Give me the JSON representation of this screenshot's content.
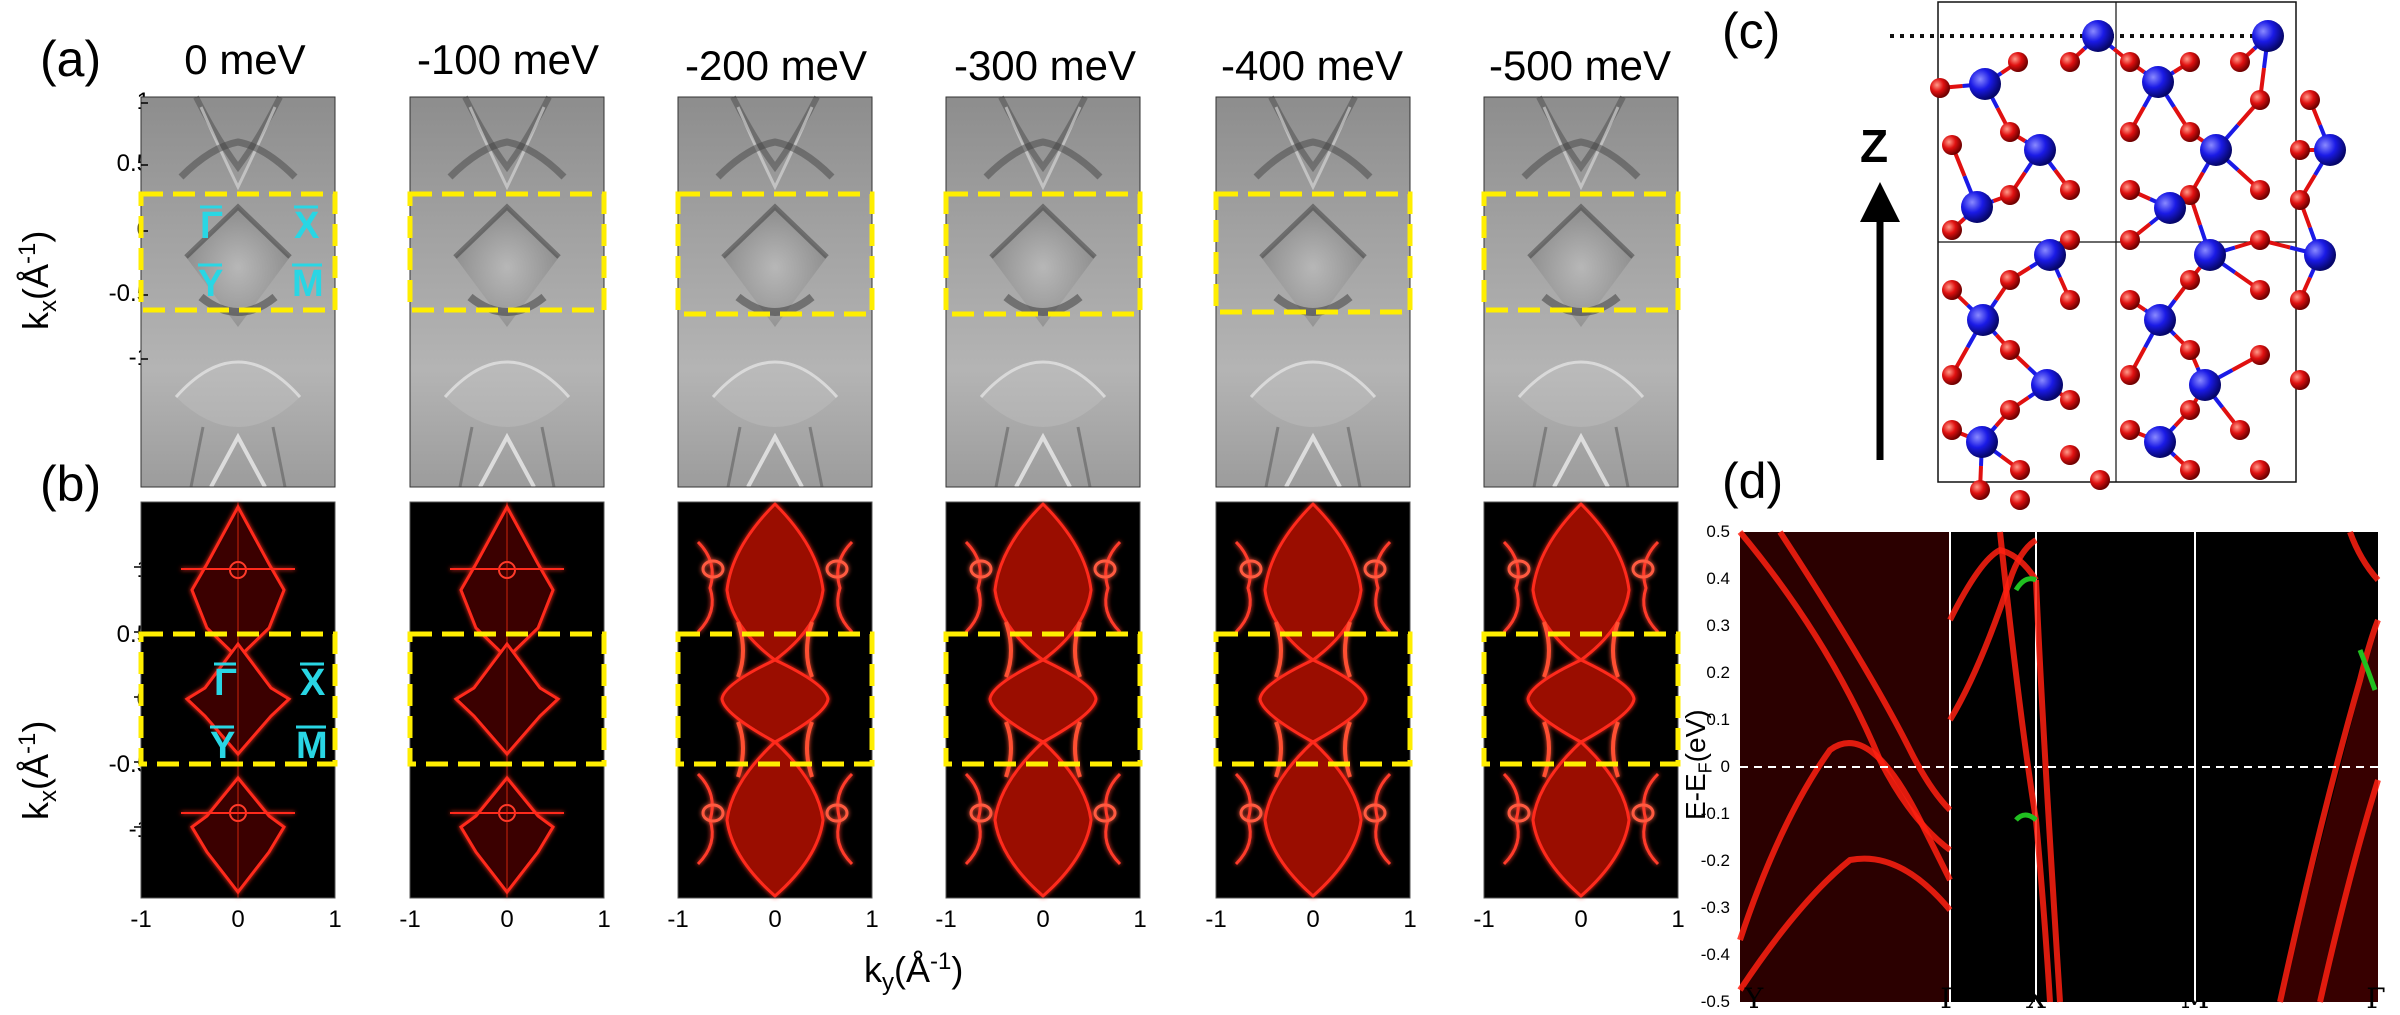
{
  "labels": {
    "panel_a": "(a)",
    "panel_b": "(b)",
    "panel_c": "(c)",
    "panel_d": "(d)",
    "z_axis": "Z",
    "kx_axis": "k",
    "kx_sub": "x",
    "kx_unit": "(Å",
    "kx_unit_exp": "-1",
    "kx_close": ")",
    "ky_axis": "k",
    "ky_sub": "y",
    "ky_unit": "(Å",
    "ky_unit_exp": "-1",
    "ky_close": ")",
    "d_ylabel_main": "E-E",
    "d_ylabel_sub": "F",
    "d_ylabel_unit": "(eV)"
  },
  "energies": [
    "0 meV",
    "-100 meV",
    "-200 meV",
    "-300 meV",
    "-400 meV",
    "-500 meV"
  ],
  "high_symmetry": {
    "gamma": "Γ",
    "x": "X",
    "y": "Y",
    "m": "M"
  },
  "a_yticks": [
    "1",
    "0.5",
    "0",
    "-0.5",
    "-1"
  ],
  "b_yticks": [
    "1",
    "0.5",
    "0",
    "-0.5",
    "-1"
  ],
  "b_xticks": [
    "-1",
    "0",
    "1"
  ],
  "d_yticks": [
    "0.5",
    "0.4",
    "0.3",
    "0.2",
    "0.1",
    "0",
    "-0.1",
    "-0.2",
    "-0.3",
    "-0.4",
    "-0.5"
  ],
  "d_xticks": [
    "Y",
    "Γ",
    "X",
    "M",
    "Γ"
  ],
  "colors": {
    "highlight": "#ffee00",
    "cyan": "#29d6e4",
    "band": "#ff2010",
    "atom_blue": "#1a1ae6",
    "atom_red": "#e01010"
  },
  "chart_data": {
    "type": "line",
    "title": "",
    "xlabel": "",
    "ylabel": "E-EF(eV)",
    "ylim": [
      -0.5,
      0.5
    ],
    "categories": [
      "Y",
      "Γ",
      "X",
      "M",
      "Γ"
    ],
    "fermi_level": 0
  }
}
